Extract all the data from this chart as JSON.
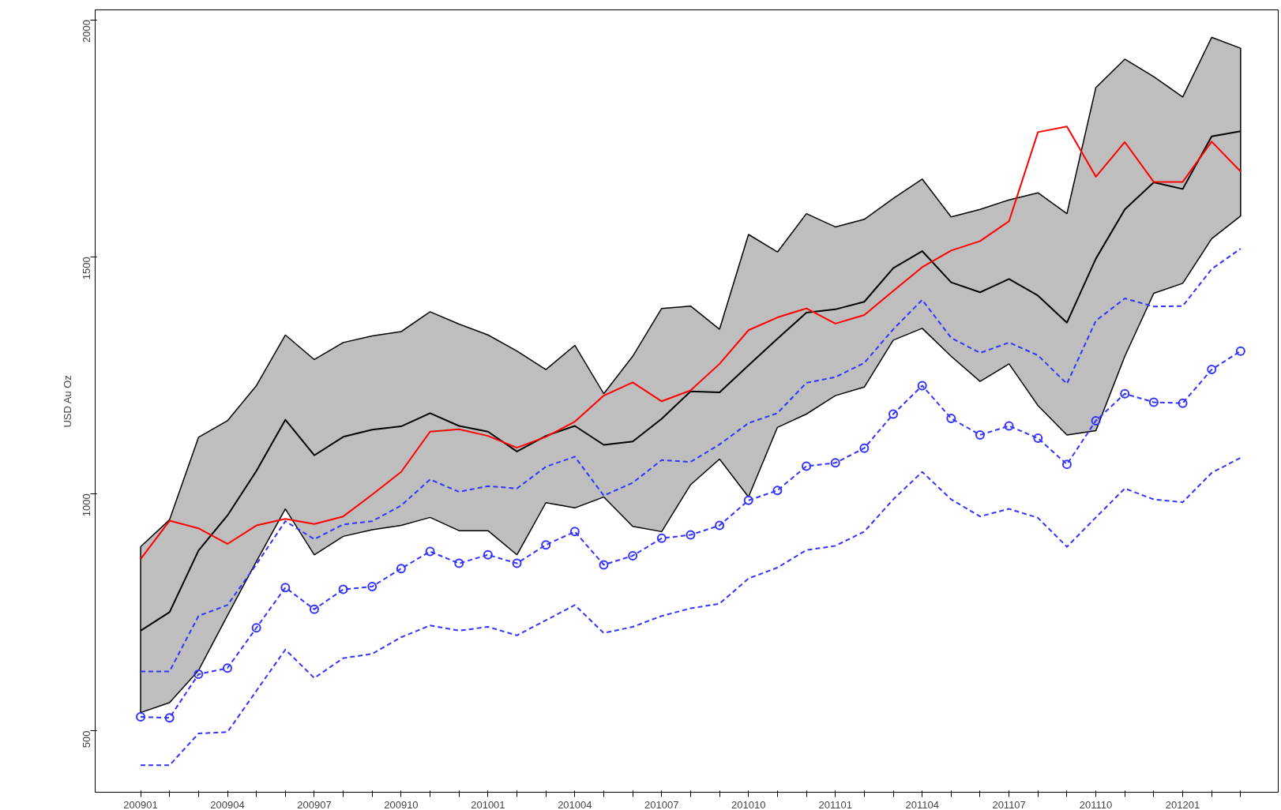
{
  "chart_data": {
    "type": "line",
    "ylabel": "USD Au Oz",
    "ylim": [
      370,
      2021
    ],
    "yticks": [
      500,
      1000,
      1500,
      2000
    ],
    "grid": false,
    "categories": [
      "200901",
      null,
      null,
      "200904",
      null,
      null,
      "200907",
      null,
      null,
      "200910",
      null,
      null,
      "201001",
      null,
      null,
      "201004",
      null,
      null,
      "201007",
      null,
      null,
      "201010",
      null,
      null,
      "201101",
      null,
      null,
      "201104",
      null,
      null,
      "201107",
      null,
      null,
      "201110",
      null,
      null,
      "201201",
      null,
      null
    ],
    "series": [
      {
        "color": "#000000",
        "line_style": "solid",
        "values": [
          711,
          750,
          880,
          954,
          1048,
          1156,
          1081,
          1120,
          1135,
          1142,
          1170,
          1143,
          1131,
          1089,
          1122,
          1143,
          1103,
          1110,
          1158,
          1216,
          1214,
          1271,
          1327,
          1382,
          1389,
          1405,
          1476,
          1512,
          1446,
          1425,
          1453,
          1418,
          1361,
          1496,
          1600,
          1657,
          1643,
          1754,
          1765
        ],
        "lower": [
          538,
          559,
          627,
          743,
          857,
          968,
          871,
          910,
          924,
          933,
          950,
          922,
          922,
          871,
          981,
          970,
          993,
          931,
          920,
          1019,
          1073,
          993,
          1140,
          1168,
          1207,
          1225,
          1324,
          1349,
          1290,
          1237,
          1274,
          1186,
          1124,
          1133,
          1290,
          1423,
          1444,
          1538,
          1586
        ],
        "upper": [
          888,
          945,
          1119,
          1154,
          1228,
          1335,
          1283,
          1319,
          1333,
          1342,
          1384,
          1358,
          1335,
          1301,
          1262,
          1313,
          1211,
          1290,
          1391,
          1396,
          1347,
          1547,
          1510,
          1591,
          1563,
          1579,
          1623,
          1664,
          1584,
          1600,
          1620,
          1635,
          1591,
          1857,
          1917,
          1880,
          1837,
          1963,
          1940
        ]
      },
      {
        "color": "#ff0000",
        "line_style": "solid",
        "values": [
          862,
          943,
          927,
          894,
          933,
          947,
          936,
          952,
          998,
          1046,
          1131,
          1136,
          1122,
          1097,
          1120,
          1152,
          1207,
          1235,
          1195,
          1218,
          1274,
          1345,
          1372,
          1391,
          1359,
          1377,
          1428,
          1478,
          1513,
          1533,
          1575,
          1763,
          1775,
          1669,
          1742,
          1658,
          1658,
          1743,
          1680
        ]
      },
      {
        "color": "#3333ff",
        "line_style": "dashed",
        "marker": "circle",
        "values": [
          529,
          527,
          619,
          632,
          717,
          802,
          756,
          798,
          804,
          842,
          878,
          853,
          871,
          853,
          892,
          920,
          850,
          869,
          906,
          913,
          933,
          986,
          1007,
          1058,
          1065,
          1096,
          1168,
          1228,
          1159,
          1124,
          1143,
          1117,
          1062,
          1154,
          1211,
          1193,
          1191,
          1262,
          1301
        ]
      },
      {
        "color": "#3333ff",
        "line_style": "dashed",
        "values": [
          625,
          625,
          742,
          765,
          851,
          942,
          904,
          935,
          942,
          975,
          1030,
          1004,
          1016,
          1011,
          1057,
          1078,
          996,
          1023,
          1071,
          1067,
          1104,
          1149,
          1170,
          1234,
          1246,
          1276,
          1347,
          1409,
          1329,
          1297,
          1319,
          1292,
          1232,
          1365,
          1412,
          1395,
          1396,
          1474,
          1517
        ]
      },
      {
        "color": "#3333ff",
        "line_style": "dashed",
        "values": [
          427,
          427,
          494,
          497,
          584,
          671,
          611,
          653,
          662,
          697,
          722,
          711,
          719,
          701,
          733,
          765,
          706,
          719,
          742,
          758,
          768,
          821,
          844,
          881,
          890,
          920,
          988,
          1046,
          988,
          952,
          968,
          949,
          888,
          950,
          1011,
          988,
          982,
          1044,
          1076
        ]
      }
    ]
  }
}
